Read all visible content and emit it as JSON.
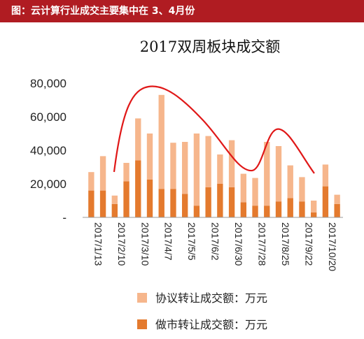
{
  "banner": {
    "text": "图：云计算行业成交主要集中在 3、4月份"
  },
  "chart_data": {
    "type": "bar",
    "stacked": true,
    "title": "2017双周板块成交额",
    "ylim": [
      0,
      80000
    ],
    "yticks": [
      "80,000",
      "60,000",
      "40,000",
      "20,000",
      "-"
    ],
    "ytick_values": [
      80000,
      60000,
      40000,
      20000,
      0
    ],
    "xtick_labels": [
      "2017/1/13",
      "2017/2/10",
      "2017/3/10",
      "2017/4/7",
      "2017/5/5",
      "2017/6/2",
      "2017/6/30",
      "2017/7/28",
      "2017/8/25",
      "2017/9/22",
      "2017/10/20"
    ],
    "xtick_indices": [
      0,
      2,
      4,
      6,
      8,
      10,
      12,
      14,
      16,
      18,
      20
    ],
    "series": [
      {
        "name": "做市转让成交额：万元",
        "color": "#e47a2e",
        "values": [
          16000,
          16000,
          8000,
          21500,
          34000,
          22500,
          17000,
          17000,
          14000,
          7000,
          18000,
          20000,
          18000,
          9000,
          7000,
          7000,
          9500,
          11500,
          9500,
          3000,
          18500,
          8000
        ]
      },
      {
        "name": "协议转让成交额：万元",
        "color": "#f6b68c",
        "values": [
          11000,
          20500,
          5000,
          11000,
          25000,
          27500,
          56000,
          27500,
          31000,
          43000,
          30500,
          17500,
          28000,
          17000,
          16500,
          38000,
          33000,
          19500,
          14500,
          7000,
          13000,
          5500
        ]
      }
    ],
    "legend": [
      "协议转让成交额：万元",
      "做市转让成交额：万元"
    ],
    "legend_position": "bottom",
    "annotation": {
      "type": "trend-curve",
      "color": "#e01818"
    }
  }
}
